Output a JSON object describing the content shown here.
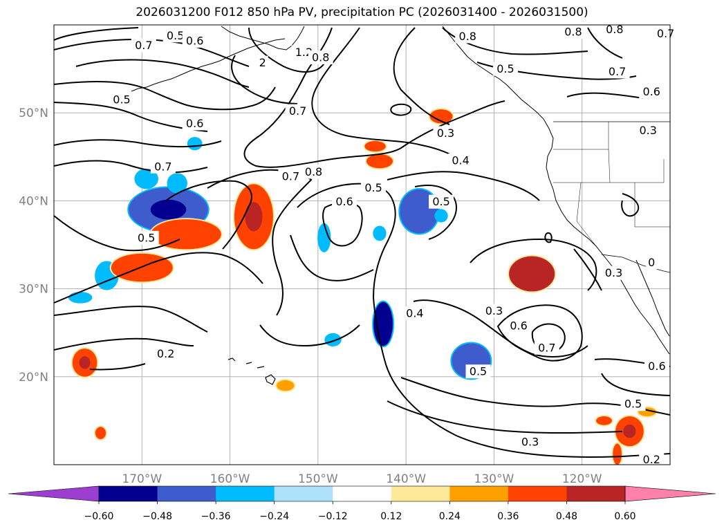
{
  "title": "2026031200 F012 850 hPa PV, precipitation PC (2026031400 - 2026031500)",
  "map": {
    "lon_labels": [
      "170°W",
      "160°W",
      "150°W",
      "140°W",
      "130°W",
      "120°W"
    ],
    "lat_labels": [
      "50°N",
      "40°N",
      "30°N",
      "20°N"
    ],
    "gridlines": true,
    "contour_labels": [
      {
        "text": "0.5",
        "lon": -166.2,
        "lat": 58.8
      },
      {
        "text": "0.6",
        "lon": -164.0,
        "lat": 58.2
      },
      {
        "text": "0.7",
        "lon": -169.8,
        "lat": 57.7
      },
      {
        "text": "2",
        "lon": -156.3,
        "lat": 55.7
      },
      {
        "text": "1.2",
        "lon": -151.6,
        "lat": 56.9
      },
      {
        "text": "0.8",
        "lon": -149.7,
        "lat": 56.3
      },
      {
        "text": "0.5",
        "lon": -172.3,
        "lat": 51.5
      },
      {
        "text": "0.6",
        "lon": -164.0,
        "lat": 48.8
      },
      {
        "text": "0.7",
        "lon": -152.3,
        "lat": 50.2
      },
      {
        "text": "0.3",
        "lon": -135.5,
        "lat": 47.7
      },
      {
        "text": "0.4",
        "lon": -133.8,
        "lat": 44.6
      },
      {
        "text": "0.7",
        "lon": -167.6,
        "lat": 43.9
      },
      {
        "text": "0.7",
        "lon": -153.1,
        "lat": 42.8
      },
      {
        "text": "0.8",
        "lon": -150.5,
        "lat": 43.3
      },
      {
        "text": "0.6",
        "lon": -147.0,
        "lat": 39.9
      },
      {
        "text": "0.5",
        "lon": -143.7,
        "lat": 41.5
      },
      {
        "text": "0.5",
        "lon": -136.0,
        "lat": 39.9
      },
      {
        "text": "0.5",
        "lon": -169.5,
        "lat": 35.8
      },
      {
        "text": "0.3",
        "lon": -130.0,
        "lat": 27.5
      },
      {
        "text": "0.6",
        "lon": -127.2,
        "lat": 25.8
      },
      {
        "text": "0.7",
        "lon": -124.0,
        "lat": 23.3
      },
      {
        "text": "0.4",
        "lon": -139.0,
        "lat": 27.2
      },
      {
        "text": "0.5",
        "lon": -131.8,
        "lat": 20.6
      },
      {
        "text": "0.3",
        "lon": -125.9,
        "lat": 12.6
      },
      {
        "text": "0.2",
        "lon": -167.3,
        "lat": 22.6
      },
      {
        "text": "0.6",
        "lon": -111.5,
        "lat": 21.2
      },
      {
        "text": "0.5",
        "lon": -114.2,
        "lat": 16.9
      },
      {
        "text": "0.2",
        "lon": -112.1,
        "lat": 10.6
      },
      {
        "text": "0.8",
        "lon": -133.0,
        "lat": 58.7
      },
      {
        "text": "0.8",
        "lon": -121.0,
        "lat": 59.2
      },
      {
        "text": "0.8",
        "lon": -116.3,
        "lat": 59.5
      },
      {
        "text": "0.5",
        "lon": -128.7,
        "lat": 55.0
      },
      {
        "text": "0.7",
        "lon": -116.0,
        "lat": 54.7
      },
      {
        "text": "0.6",
        "lon": -112.1,
        "lat": 52.4
      },
      {
        "text": "0.7",
        "lon": -110.5,
        "lat": 59.0
      },
      {
        "text": "0.3",
        "lon": -112.5,
        "lat": 48.0
      },
      {
        "text": "0.3",
        "lon": -116.4,
        "lat": 31.8
      },
      {
        "text": "0",
        "lon": -112.1,
        "lat": 33.0
      }
    ]
  },
  "colorbar": {
    "colors": [
      "#9c3ecf",
      "#03008f",
      "#3f5ccd",
      "#00bcff",
      "#aee2fb",
      "#ffffff",
      "#fde99a",
      "#ffa000",
      "#ff4200",
      "#b92525",
      "#ff80aa"
    ],
    "tick_labels": [
      "−0.60",
      "−0.48",
      "−0.36",
      "−0.24",
      "−0.12",
      "0.12",
      "0.24",
      "0.36",
      "0.48",
      "0.60"
    ]
  },
  "chart_data": {
    "type": "contour map",
    "title": "2026031200 F012 850 hPa PV, precipitation PC (2026031400 - 2026031500)",
    "extent_lon": [
      -180,
      -110
    ],
    "extent_lat": [
      10,
      60
    ],
    "contour_levels": [
      0.2,
      0.3,
      0.4,
      0.5,
      0.6,
      0.7,
      0.8,
      1.2,
      2
    ],
    "fill_levels": [
      -0.6,
      -0.48,
      -0.36,
      -0.24,
      -0.12,
      0.12,
      0.24,
      0.36,
      0.48,
      0.6
    ],
    "precip_blobs": [
      {
        "lon": -167.0,
        "lat": 39.0,
        "rx": 4.5,
        "ry": 2.5,
        "value": -0.45
      },
      {
        "lon": -169.5,
        "lat": 42.5,
        "rx": 1.2,
        "ry": 1.0,
        "value": -0.3
      },
      {
        "lon": -166.0,
        "lat": 42.0,
        "rx": 1.0,
        "ry": 1.0,
        "value": -0.3
      },
      {
        "lon": -174.0,
        "lat": 31.5,
        "rx": 1.2,
        "ry": 1.5,
        "value": -0.3
      },
      {
        "lon": -177.0,
        "lat": 29.0,
        "rx": 1.2,
        "ry": 0.5,
        "value": -0.3
      },
      {
        "lon": -164.0,
        "lat": 46.5,
        "rx": 0.7,
        "ry": 0.6,
        "value": -0.25
      },
      {
        "lon": -138.5,
        "lat": 38.8,
        "rx": 2.2,
        "ry": 2.5,
        "value": -0.4
      },
      {
        "lon": -142.6,
        "lat": 26.0,
        "rx": 1.1,
        "ry": 2.5,
        "value": -0.5
      },
      {
        "lon": -132.6,
        "lat": 21.8,
        "rx": 2.2,
        "ry": 2.0,
        "value": -0.4
      },
      {
        "lon": -149.3,
        "lat": 35.8,
        "rx": 0.6,
        "ry": 1.5,
        "value": -0.25
      },
      {
        "lon": -148.3,
        "lat": 24.2,
        "rx": 0.8,
        "ry": 0.6,
        "value": -0.25
      },
      {
        "lon": -136.0,
        "lat": 38.3,
        "rx": 0.6,
        "ry": 0.6,
        "value": -0.25
      },
      {
        "lon": -143.0,
        "lat": 36.3,
        "rx": 0.6,
        "ry": 0.7,
        "value": -0.25
      },
      {
        "lon": -165.0,
        "lat": 36.2,
        "rx": 4.0,
        "ry": 1.7,
        "value": 0.42
      },
      {
        "lon": -170.0,
        "lat": 32.4,
        "rx": 3.5,
        "ry": 1.6,
        "value": 0.42
      },
      {
        "lon": -157.3,
        "lat": 38.2,
        "rx": 2.2,
        "ry": 3.7,
        "value": 0.45
      },
      {
        "lon": -125.7,
        "lat": 31.7,
        "rx": 2.6,
        "ry": 2.0,
        "value": 0.5
      },
      {
        "lon": -136.0,
        "lat": 49.6,
        "rx": 1.3,
        "ry": 0.8,
        "value": 0.4
      },
      {
        "lon": -143.5,
        "lat": 46.2,
        "rx": 1.2,
        "ry": 0.6,
        "value": 0.4
      },
      {
        "lon": -143.0,
        "lat": 44.5,
        "rx": 1.5,
        "ry": 0.8,
        "value": 0.4
      },
      {
        "lon": -176.5,
        "lat": 21.6,
        "rx": 1.4,
        "ry": 1.6,
        "value": 0.45
      },
      {
        "lon": -153.7,
        "lat": 19.0,
        "rx": 1.0,
        "ry": 0.6,
        "value": 0.35
      },
      {
        "lon": -174.7,
        "lat": 13.6,
        "rx": 0.6,
        "ry": 0.7,
        "value": 0.4
      },
      {
        "lon": -114.6,
        "lat": 13.8,
        "rx": 1.6,
        "ry": 1.7,
        "value": 0.45
      },
      {
        "lon": -117.5,
        "lat": 15.0,
        "rx": 0.9,
        "ry": 0.5,
        "value": 0.4
      },
      {
        "lon": -116.0,
        "lat": 11.2,
        "rx": 0.5,
        "ry": 1.2,
        "value": 0.4
      },
      {
        "lon": -112.6,
        "lat": 16.0,
        "rx": 1.0,
        "ry": 0.5,
        "value": 0.3
      }
    ]
  }
}
